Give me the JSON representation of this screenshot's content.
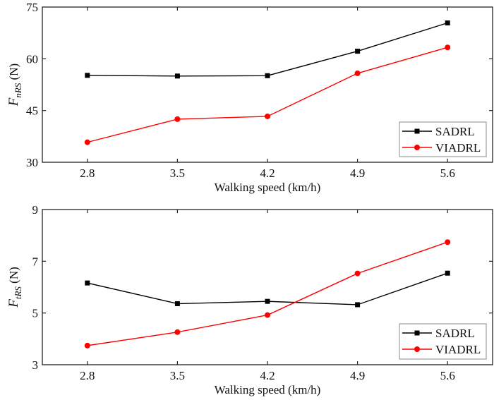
{
  "chart_data": [
    {
      "type": "line",
      "ylabel": {
        "main": "F",
        "sub": "nRS",
        "unit": " (N)"
      },
      "xlabel": "Walking speed (km/h)",
      "categories": [
        "2.8",
        "3.5",
        "4.2",
        "4.9",
        "5.6"
      ],
      "x": [
        2.8,
        3.5,
        4.2,
        4.9,
        5.6
      ],
      "ylim": [
        30,
        75
      ],
      "yticks": [
        30,
        45,
        60,
        75
      ],
      "legend_position": "bottom-right",
      "grid": false,
      "series": [
        {
          "name": "SADRL",
          "color": "#000000",
          "marker": "square",
          "values": [
            55.2,
            55.0,
            55.1,
            62.2,
            70.4
          ]
        },
        {
          "name": "VIADRL",
          "color": "#ff0000",
          "marker": "circle",
          "values": [
            35.8,
            42.5,
            43.3,
            55.8,
            63.3
          ]
        }
      ]
    },
    {
      "type": "line",
      "ylabel": {
        "main": "F",
        "sub": "tRS",
        "unit": " (N)"
      },
      "xlabel": "Walking speed (km/h)",
      "categories": [
        "2.8",
        "3.5",
        "4.2",
        "4.9",
        "5.6"
      ],
      "x": [
        2.8,
        3.5,
        4.2,
        4.9,
        5.6
      ],
      "ylim": [
        3,
        9
      ],
      "yticks": [
        3,
        5,
        7,
        9
      ],
      "legend_position": "bottom-right",
      "grid": false,
      "series": [
        {
          "name": "SADRL",
          "color": "#000000",
          "marker": "square",
          "values": [
            6.16,
            5.36,
            5.45,
            5.32,
            6.54
          ]
        },
        {
          "name": "VIADRL",
          "color": "#ff0000",
          "marker": "circle",
          "values": [
            3.74,
            4.26,
            4.92,
            6.53,
            7.74
          ]
        }
      ]
    }
  ]
}
